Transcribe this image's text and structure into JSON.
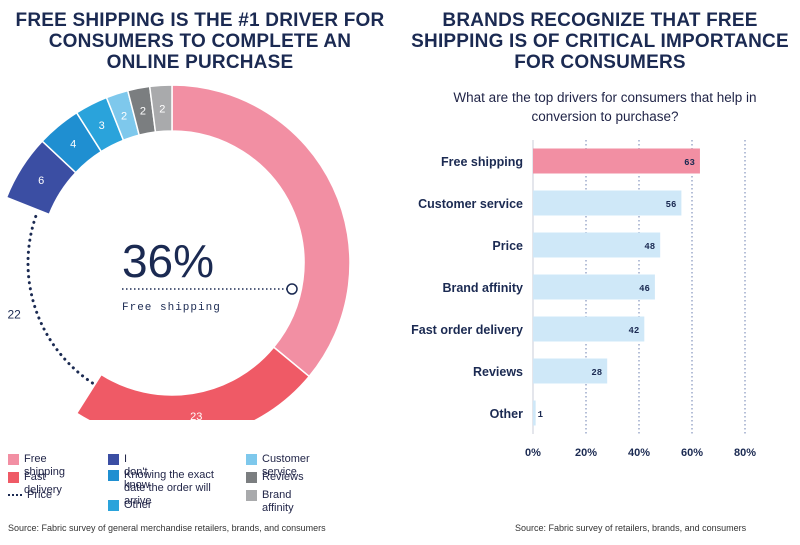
{
  "left": {
    "title": "FREE SHIPPING IS THE #1 DRIVER FOR CONSUMERS TO COMPLETE AN ONLINE PURCHASE",
    "center_value": "36%",
    "center_label": "Free shipping",
    "source": "Source: Fabric survey of general merchandise retailers, brands, and consumers"
  },
  "right": {
    "title": "BRANDS RECOGNIZE THAT FREE SHIPPING IS OF CRITICAL IMPORTANCE FOR CONSUMERS",
    "subtitle": "What are the top drivers for consumers that help in conversion to purchase?",
    "source": "Source: Fabric survey of retailers, brands, and consumers"
  },
  "legend": [
    {
      "label": "Free shipping",
      "color": "#f28fa3",
      "style": "solid"
    },
    {
      "label": "Fast delivery",
      "color": "#ef5a66",
      "style": "solid"
    },
    {
      "label": "Price",
      "color": "#1b2a52",
      "style": "dotted"
    },
    {
      "label": "I don't know",
      "color": "#3b4ea3",
      "style": "solid"
    },
    {
      "label": "Knowing the exact date the order will arrive",
      "color": "#1f8fd1",
      "style": "solid"
    },
    {
      "label": "Other",
      "color": "#2aa3db",
      "style": "solid"
    },
    {
      "label": "Customer service",
      "color": "#7ec8ec",
      "style": "solid"
    },
    {
      "label": "Reviews",
      "color": "#7b7e80",
      "style": "solid"
    },
    {
      "label": "Brand affinity",
      "color": "#a9aaac",
      "style": "solid"
    }
  ],
  "chart_data": [
    {
      "type": "pie",
      "title": "FREE SHIPPING IS THE #1 DRIVER FOR CONSUMERS TO COMPLETE AN ONLINE PURCHASE",
      "series": [
        {
          "name": "Free shipping",
          "value": 36,
          "color": "#f28fa3"
        },
        {
          "name": "Fast delivery",
          "value": 23,
          "color": "#ef5a66"
        },
        {
          "name": "Price",
          "value": 22,
          "color": "#1b2a52"
        },
        {
          "name": "I don't know",
          "value": 6,
          "color": "#3b4ea3"
        },
        {
          "name": "Knowing the exact date the order will arrive",
          "value": 4,
          "color": "#1f8fd1"
        },
        {
          "name": "Other",
          "value": 3,
          "color": "#2aa3db"
        },
        {
          "name": "Customer service",
          "value": 2,
          "color": "#7ec8ec"
        },
        {
          "name": "Reviews",
          "value": 2,
          "color": "#7b7e80"
        },
        {
          "name": "Brand affinity",
          "value": 2,
          "color": "#a9aaac"
        }
      ]
    },
    {
      "type": "bar",
      "orientation": "horizontal",
      "title": "BRANDS RECOGNIZE THAT FREE SHIPPING IS OF CRITICAL IMPORTANCE FOR CONSUMERS",
      "subtitle": "What are the top drivers for consumers that help in conversion to purchase?",
      "categories": [
        "Free shipping",
        "Customer service",
        "Price",
        "Brand affinity",
        "Fast order delivery",
        "Reviews",
        "Other"
      ],
      "values": [
        63,
        56,
        48,
        46,
        42,
        28,
        1
      ],
      "highlight_color": "#f28fa3",
      "bar_color": "#cfe8f8",
      "xlim": [
        0,
        80
      ],
      "xticks": [
        "0%",
        "20%",
        "40%",
        "60%",
        "80%"
      ],
      "grid": true
    }
  ]
}
